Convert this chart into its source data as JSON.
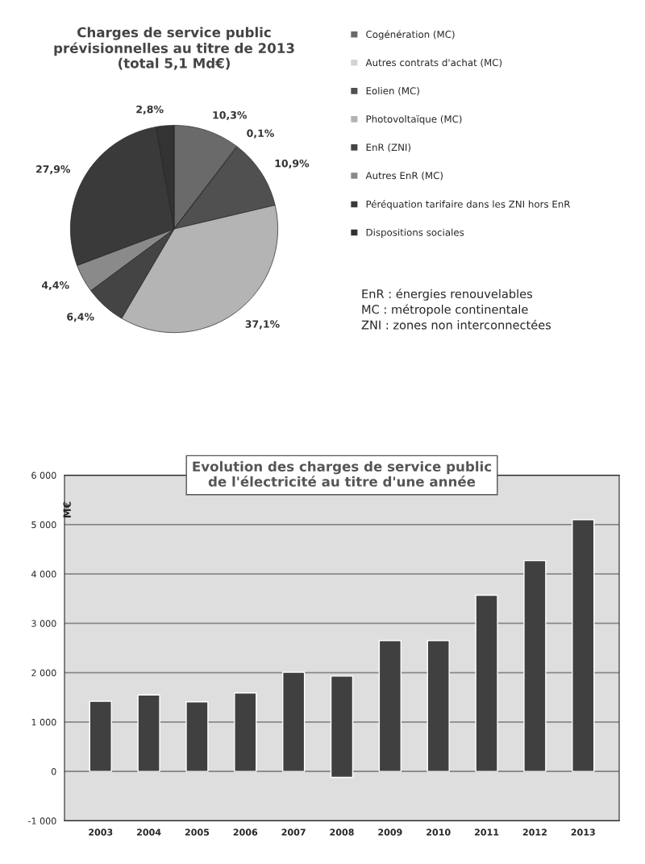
{
  "chart_data": [
    {
      "type": "pie",
      "title": "Charges de service public\nprévisionnelles au titre de 2013\n(total 5,1 Md€)",
      "categories": [
        "Cogénération (MC)",
        "Autres contrats d'achat (MC)",
        "Eolien (MC)",
        "Photovoltaïque (MC)",
        "EnR (ZNI)",
        "Autres EnR (MC)",
        "Péréquation tarifaire dans les ZNI hors EnR",
        "Dispositions sociales"
      ],
      "values": [
        10.3,
        0.1,
        10.9,
        37.1,
        6.4,
        4.4,
        27.9,
        2.8
      ],
      "value_labels": [
        "10,3%",
        "0,1%",
        "10,9%",
        "37,1%",
        "6,4%",
        "4,4%",
        "27,9%",
        "2,8%"
      ],
      "colors": [
        "#6a6a6a",
        "#d4d4d4",
        "#505050",
        "#b4b4b4",
        "#444444",
        "#8a8a8a",
        "#3a3a3a",
        "#333333"
      ],
      "legend": "right",
      "annotations": [
        "EnR : énergies renouvelables",
        "MC : métropole continentale",
        "ZNI : zones non interconnectées"
      ]
    },
    {
      "type": "bar",
      "title": "Evolution des charges de service public\nde l'électricité au titre d'une année",
      "ylabel": "M€",
      "categories": [
        "2003",
        "2004",
        "2005",
        "2006",
        "2007",
        "2008",
        "2009",
        "2010",
        "2011",
        "2012",
        "2013"
      ],
      "values": [
        1420,
        1550,
        1410,
        1590,
        2010,
        2050,
        2650,
        2650,
        3570,
        4270,
        5100
      ],
      "base": [
        0,
        0,
        0,
        0,
        0,
        -120,
        0,
        0,
        0,
        0,
        0
      ],
      "color": "#404040",
      "ylim": [
        -1000,
        6000
      ],
      "yticks": [
        {
          "value": -1000,
          "label": "-1 000"
        },
        0,
        {
          "value": 1000,
          "label": "1 000"
        },
        {
          "value": 2000,
          "label": "2 000"
        },
        {
          "value": 3000,
          "label": "3 000"
        },
        {
          "value": 4000,
          "label": "4 000"
        },
        {
          "value": 5000,
          "label": "5 000"
        },
        {
          "value": 6000,
          "label": "6 000"
        }
      ],
      "grid": "y"
    }
  ]
}
